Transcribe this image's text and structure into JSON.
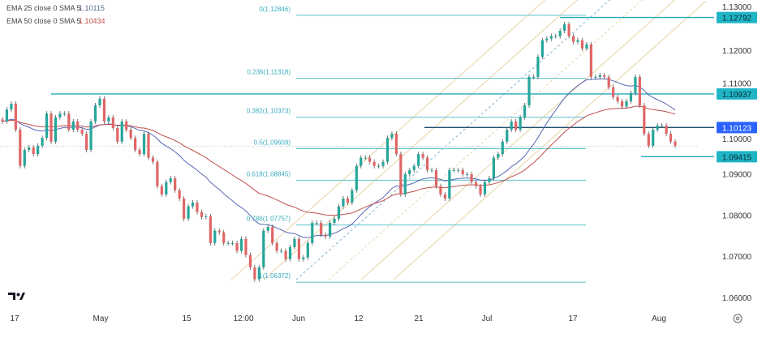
{
  "legend": [
    {
      "label": "EMA 25 close 0 SMA 5",
      "value": "1.10115",
      "color": "#5a6a8a"
    },
    {
      "label": "EMA 50 close 0 SMA 5",
      "value": "1.10434",
      "color": "#c0504d"
    }
  ],
  "chart_data": {
    "type": "candlestick",
    "title": "",
    "colors": {
      "up": "#26a69a",
      "down": "#e06666",
      "ema25": "#5567b5",
      "ema50": "#c0504d",
      "level": "#22aabf",
      "fib": "#5cc2cf",
      "pitchfork": "#e8d3a6",
      "highlight": "#2962ff"
    },
    "ylim": [
      1.059,
      1.131
    ],
    "y_ticks": [
      "1.13000",
      "1.12000",
      "1.11000",
      "1.10000",
      "1.09000",
      "1.08000",
      "1.07000",
      "1.06000"
    ],
    "x_ticks": [
      "17",
      "May",
      "15",
      "12:00",
      "Jun",
      "12",
      "21",
      "Jul",
      "17",
      "Aug"
    ],
    "close": [
      1.1027,
      1.1056,
      1.107,
      1.1007,
      1.0919,
      1.0958,
      1.0964,
      1.0948,
      1.0968,
      1.0987,
      1.1046,
      1.0978,
      1.1037,
      1.1046,
      1.1046,
      1.1007,
      1.1027,
      1.1007,
      1.0997,
      1.0958,
      1.1027,
      1.1066,
      1.1082,
      1.1027,
      1.1037,
      1.1011,
      1.0978,
      1.1027,
      1.1007,
      1.0987,
      1.0958,
      1.0948,
      1.0997,
      1.0939,
      1.0929,
      1.087,
      1.085,
      1.088,
      1.0889,
      1.086,
      1.084,
      1.0791,
      1.0821,
      1.083,
      1.0807,
      1.0795,
      1.0797,
      1.0732,
      1.0762,
      1.0758,
      1.0732,
      1.0732,
      1.0732,
      1.0713,
      1.0742,
      1.0703,
      1.0673,
      1.0644,
      1.0673,
      1.0762,
      1.0771,
      1.0732,
      1.0713,
      1.0713,
      1.0693,
      1.0722,
      1.0742,
      1.0693,
      1.0697,
      1.0732,
      1.0781,
      1.0781,
      1.0752,
      1.0748,
      1.0781,
      1.0791,
      1.0821,
      1.084,
      1.083,
      1.086,
      1.0919,
      1.0939,
      1.0939,
      1.0929,
      1.0919,
      1.0919,
      1.0929,
      1.0987,
      1.0997,
      1.0948,
      1.085,
      1.0899,
      1.0909,
      1.0919,
      1.0948,
      1.0939,
      1.0909,
      1.0909,
      1.087,
      1.085,
      1.084,
      1.0909,
      1.0909,
      1.0909,
      1.0899,
      1.0899,
      1.088,
      1.087,
      1.085,
      1.088,
      1.0889,
      1.0939,
      1.0948,
      1.0978,
      1.1007,
      1.1027,
      1.1007,
      1.1037,
      1.1066,
      1.1135,
      1.1135,
      1.1184,
      1.1224,
      1.1228,
      1.1234,
      1.1234,
      1.1247,
      1.1263,
      1.1234,
      1.122,
      1.1224,
      1.1204,
      1.1214,
      1.1135,
      1.1135,
      1.1139,
      1.1135,
      1.111,
      1.1086,
      1.1076,
      1.1063,
      1.1076,
      1.1096,
      1.1135,
      1.1066,
      1.0997,
      1.0968,
      1.1007,
      1.1017,
      1.1017,
      1.0997,
      1.0978,
      1.0968
    ],
    "horizontal_levels": [
      {
        "price": 1.12792,
        "label": "1.12792",
        "style": "level"
      },
      {
        "price": 1.10937,
        "label": "1.10937",
        "style": "level"
      },
      {
        "price": 1.10123,
        "label": "1.10123",
        "style": "highlight"
      },
      {
        "price": 1.09415,
        "label": "1.09415",
        "style": "level"
      }
    ],
    "fibonacci": [
      {
        "ratio": "0",
        "price": 1.12846,
        "label": "0(1.12846)"
      },
      {
        "ratio": "0.236",
        "price": 1.11318,
        "label": "0.236(1.11318)"
      },
      {
        "ratio": "0.382",
        "price": 1.10373,
        "label": "0.382(1.10373)"
      },
      {
        "ratio": "0.5",
        "price": 1.09609,
        "label": "0.5(1.09609)"
      },
      {
        "ratio": "0.618",
        "price": 1.08845,
        "label": "0.618(1.08845)"
      },
      {
        "ratio": "0.786",
        "price": 1.07757,
        "label": "0.786(1.07757)"
      },
      {
        "ratio": "1",
        "price": 1.06372,
        "label": "1(1.06372)"
      }
    ],
    "last_price": 1.0967
  }
}
